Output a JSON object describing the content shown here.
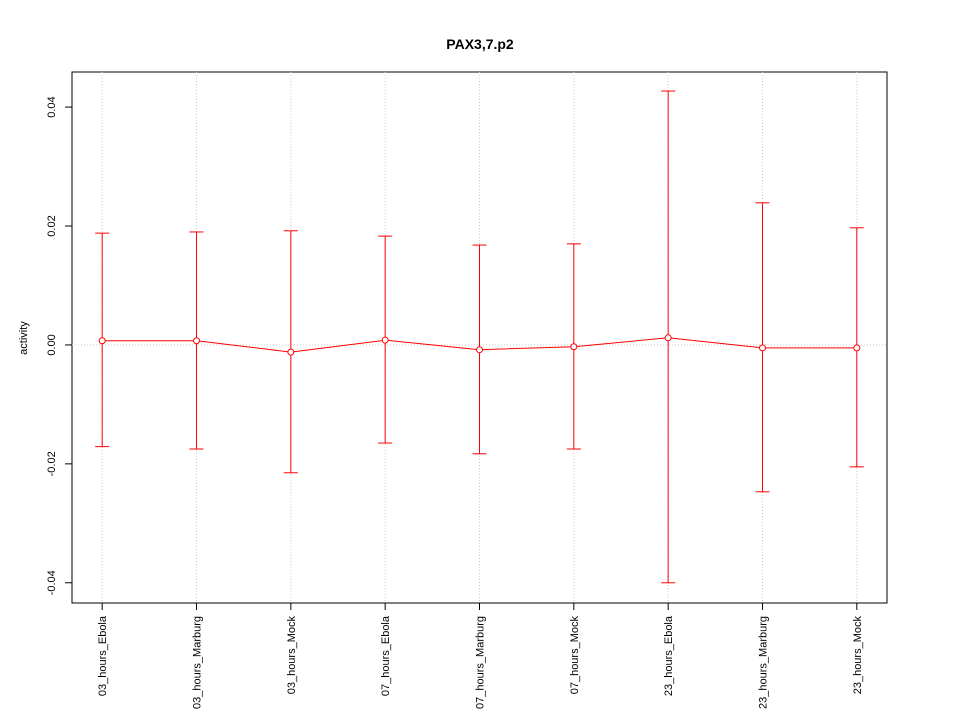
{
  "chart_data": {
    "type": "line",
    "title": "PAX3,7.p2",
    "y_label": "activity",
    "categories": [
      "03_hours_Ebola",
      "03_hours_Marburg",
      "03_hours_Mock",
      "07_hours_Ebola",
      "07_hours_Marburg",
      "07_hours_Mock",
      "23_hours_Ebola",
      "23_hours_Marburg",
      "23_hours_Mock"
    ],
    "series": [
      {
        "color": "#ff0000",
        "values": [
          0.0007,
          0.0007,
          -0.0012,
          0.0008,
          -0.0008,
          -0.0003,
          0.0012,
          -0.0005,
          -0.0005
        ],
        "lower": [
          -0.0171,
          -0.0175,
          -0.0215,
          -0.0165,
          -0.0183,
          -0.0175,
          -0.04,
          -0.0247,
          -0.0205
        ],
        "upper": [
          0.0188,
          0.019,
          0.0192,
          0.0183,
          0.0168,
          0.017,
          0.0427,
          0.0239,
          0.0197
        ]
      }
    ],
    "ylim": [
      -0.0434,
      0.0459
    ],
    "yticks": [
      {
        "value": -0.04,
        "label": "-0.04"
      },
      {
        "value": -0.02,
        "label": "-0.02"
      },
      {
        "value": 0,
        "label": "0.00"
      },
      {
        "value": 0.02,
        "label": "0.02"
      },
      {
        "value": 0.04,
        "label": "0.04"
      }
    ],
    "grid": true
  }
}
